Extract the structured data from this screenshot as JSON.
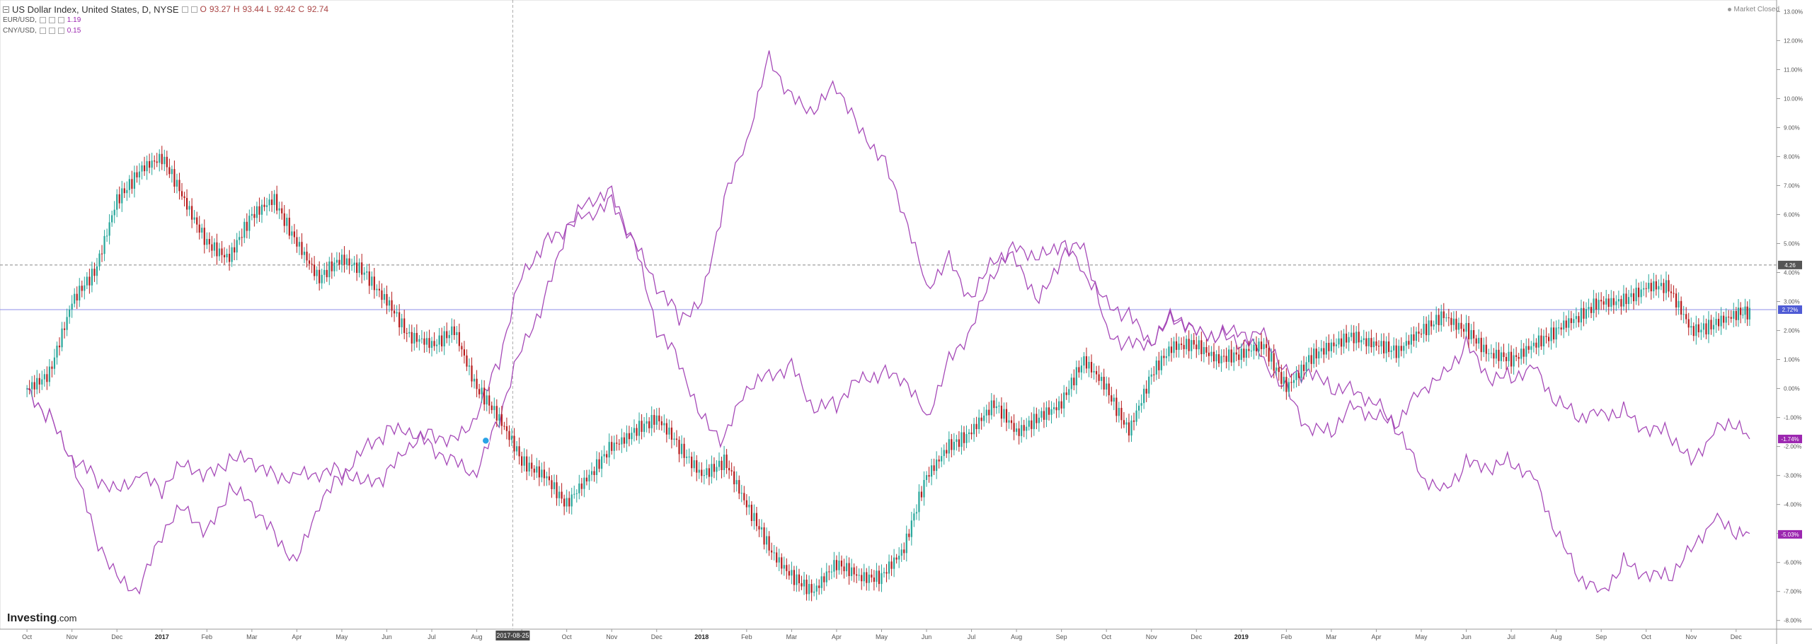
{
  "header": {
    "symbol": "US Dollar Index, United States, D, NYSE",
    "o_label": "O",
    "o": "93.27",
    "h_label": "H",
    "h": "93.44",
    "l_label": "L",
    "l": "92.42",
    "c_label": "C",
    "c": "92.74",
    "series2_name": "EUR/USD,",
    "series2_value": "1.19",
    "series3_name": "CNY/USD,",
    "series3_value": "0.15"
  },
  "status": {
    "label": "Market Closed"
  },
  "brand": {
    "name": "Investing",
    "suffix": ".com"
  },
  "colors": {
    "up": "#26a69a",
    "down": "#b71c1c",
    "compare": "#a64ab8",
    "blueline": "#8f8fe8",
    "badge_purple": "#9c27b0"
  },
  "chart_data": {
    "type": "line",
    "y_unit": "%",
    "ylim": [
      -8.3,
      13.4
    ],
    "y_ticks": [
      "-8.00%",
      "-7.00%",
      "-6.00%",
      "-5.00%",
      "-4.00%",
      "-3.00%",
      "-2.00%",
      "-1.00%",
      "0.00%",
      "1.00%",
      "2.00%",
      "3.00%",
      "4.00%",
      "5.00%",
      "6.00%",
      "7.00%",
      "8.00%",
      "9.00%",
      "10.00%",
      "11.00%",
      "12.00%",
      "13.00%"
    ],
    "y_tick_values": [
      -8,
      -7,
      -6,
      -5,
      -4,
      -3,
      -2,
      -1,
      0,
      1,
      2,
      3,
      4,
      5,
      6,
      7,
      8,
      9,
      10,
      11,
      12,
      13
    ],
    "x_ticks": [
      "Oct",
      "Nov",
      "Dec",
      "2017",
      "Feb",
      "Mar",
      "Apr",
      "May",
      "Jun",
      "Jul",
      "Aug",
      "Sep",
      "Oct",
      "Nov",
      "Dec",
      "2018",
      "Feb",
      "Mar",
      "Apr",
      "May",
      "Jun",
      "Jul",
      "Aug",
      "Sep",
      "Oct",
      "Nov",
      "Dec",
      "2019",
      "Feb",
      "Mar",
      "Apr",
      "May",
      "Jun",
      "Jul",
      "Aug",
      "Sep",
      "Oct",
      "Nov",
      "Dec"
    ],
    "x_tick_index": [
      0,
      1,
      2,
      3,
      4,
      5,
      6,
      7,
      8,
      9,
      10,
      11,
      12,
      13,
      14,
      15,
      16,
      17,
      18,
      19,
      20,
      21,
      22,
      23,
      24,
      25,
      26,
      27,
      28,
      29,
      30,
      31,
      32,
      33,
      34,
      35,
      36,
      37,
      38
    ],
    "x_range": [
      -0.6,
      38.9
    ],
    "crosshair": {
      "x": 10.8,
      "x_label": "2017-08-25",
      "y": 4.26,
      "y_label": "4.26"
    },
    "price_line": {
      "value": 2.72,
      "label": "2.72%"
    },
    "markers": [
      {
        "x": 10.2,
        "y": -1.8
      }
    ],
    "badges": [
      {
        "value": 4.26,
        "label": "4.26",
        "color": "#555555"
      },
      {
        "value": 2.72,
        "label": "2.72%",
        "color": "#4f5bd5"
      },
      {
        "value": -1.74,
        "label": "-1.74%",
        "color": "#9c27b0"
      },
      {
        "value": -5.03,
        "label": "-5.03%",
        "color": "#9c27b0"
      }
    ],
    "series": [
      {
        "kind": "candles",
        "x": [
          0,
          0.5,
          1,
          1.5,
          2,
          2.5,
          3,
          3.5,
          4,
          4.5,
          5,
          5.5,
          6,
          6.5,
          7,
          7.5,
          8,
          8.5,
          9,
          9.5,
          10,
          10.5,
          11,
          11.5,
          12,
          12.5,
          13,
          13.5,
          14,
          14.5,
          15,
          15.5,
          16,
          16.5,
          17,
          17.5,
          18,
          18.5,
          19,
          19.5,
          20,
          20.5,
          21,
          21.5,
          22,
          22.5,
          23,
          23.5,
          24,
          24.5,
          25,
          25.5,
          26,
          26.5,
          27,
          27.5,
          28,
          28.5,
          29,
          29.5,
          30,
          30.5,
          31,
          31.5,
          32,
          32.5,
          33,
          33.5,
          34,
          34.5,
          35,
          35.5,
          36,
          36.5,
          37,
          37.5,
          38,
          38.3
        ],
        "values": [
          0,
          0.5,
          3,
          4,
          6.5,
          7.5,
          8,
          6.5,
          5,
          4.5,
          6,
          6.5,
          5,
          3.8,
          4.5,
          4,
          3,
          1.8,
          1.5,
          2,
          0,
          -1,
          -2.5,
          -3,
          -4,
          -3,
          -2,
          -1.5,
          -1,
          -2,
          -3,
          -2.5,
          -4,
          -5.5,
          -6.5,
          -7,
          -6,
          -6.5,
          -6.5,
          -5.5,
          -3,
          -2,
          -1.5,
          -0.5,
          -1.5,
          -1,
          -0.5,
          1,
          0,
          -1.5,
          0.5,
          1.5,
          1.5,
          1,
          1.2,
          1.5,
          0,
          1,
          1.5,
          1.8,
          1.5,
          1.3,
          2,
          2.5,
          2,
          1.2,
          1,
          1.5,
          2,
          2.5,
          3,
          3,
          3.5,
          3.5,
          2,
          2.2,
          2.6,
          2.6
        ]
      },
      {
        "kind": "line",
        "x": [
          0,
          0.5,
          1,
          1.5,
          2,
          2.5,
          3,
          3.5,
          4,
          4.5,
          5,
          5.5,
          6,
          6.5,
          7,
          7.5,
          8,
          8.5,
          9,
          9.5,
          10,
          10.5,
          11,
          11.5,
          12,
          12.5,
          13,
          13.5,
          14,
          14.5,
          15,
          15.5,
          16,
          16.5,
          17,
          17.5,
          18,
          18.5,
          19,
          19.5,
          20,
          20.5,
          21,
          21.5,
          22,
          22.5,
          23,
          23.5,
          24,
          24.5,
          25,
          25.5,
          26,
          26.5,
          27,
          27.5,
          28,
          28.5,
          29,
          29.5,
          30,
          30.5,
          31,
          31.5,
          32,
          32.5,
          33,
          33.5,
          34,
          34.5,
          35,
          35.5,
          36,
          36.5,
          37,
          37.5,
          38,
          38.3
        ],
        "values": [
          0,
          -1,
          -2.5,
          -5,
          -6.5,
          -7,
          -5,
          -4,
          -5,
          -3.5,
          -4,
          -5,
          -6,
          -4,
          -3,
          -2,
          -1.5,
          -1.5,
          -2,
          -2.5,
          -3,
          -1,
          1.5,
          3,
          5.5,
          6,
          6.5,
          5,
          2,
          1,
          -1,
          -1.8,
          0,
          0.5,
          0.8,
          -0.8,
          -0.5,
          0.4,
          0.5,
          0.3,
          -1,
          1,
          2,
          4,
          5,
          4.5,
          5,
          4,
          3,
          2.5,
          1.5,
          2.6,
          2,
          1.8,
          1.5,
          2,
          0.5,
          0.5,
          0,
          0,
          -0.5,
          -1.5,
          -3,
          -3.5,
          -2.6,
          -2.8,
          -2.5,
          -3,
          -5,
          -6.5,
          -7,
          -6,
          -6.5,
          -6.5,
          -5.5,
          -4.5,
          -5,
          -5
        ]
      },
      {
        "kind": "line",
        "x": [
          0,
          0.5,
          1,
          1.5,
          2,
          2.5,
          3,
          3.5,
          4,
          4.5,
          5,
          5.5,
          6,
          6.5,
          7,
          7.5,
          8,
          8.5,
          9,
          9.5,
          10,
          10.5,
          11,
          11.5,
          12,
          12.5,
          13,
          13.5,
          14,
          14.5,
          15,
          15.5,
          16,
          16.5,
          17,
          17.5,
          18,
          18.5,
          19,
          19.5,
          20,
          20.5,
          21,
          21.5,
          22,
          22.5,
          23,
          23.5,
          24,
          24.5,
          25,
          25.5,
          26,
          26.5,
          27,
          27.5,
          28,
          28.5,
          29,
          29.5,
          30,
          30.5,
          31,
          31.5,
          32,
          32.5,
          33,
          33.5,
          34,
          34.5,
          35,
          35.5,
          36,
          36.5,
          37,
          37.5,
          38,
          38.3
        ],
        "values": [
          0,
          -1,
          -2.5,
          -3,
          -3.5,
          -3,
          -3.5,
          -2.5,
          -3,
          -2.5,
          -2.5,
          -3,
          -3,
          -3,
          -2.8,
          -3.2,
          -3,
          -2,
          -1.5,
          -1.8,
          -1,
          1,
          4,
          5,
          5.5,
          6.5,
          6.8,
          5,
          3.5,
          2.5,
          3,
          6.5,
          8.5,
          11.5,
          10,
          9.5,
          10.5,
          9,
          8,
          6,
          3.5,
          4.5,
          3,
          4.5,
          4.5,
          3,
          4.5,
          5,
          2,
          1.5,
          1.5,
          2.5,
          2,
          1.8,
          2,
          1,
          0,
          -1.5,
          -1.5,
          -0.5,
          -1,
          -1.2,
          0,
          0.5,
          1.5,
          0.3,
          0.4,
          0.8,
          -0.5,
          -1,
          -0.8,
          -0.8,
          -1.5,
          -1.5,
          -2.5,
          -1.5,
          -1.2,
          -1.74
        ]
      }
    ]
  }
}
